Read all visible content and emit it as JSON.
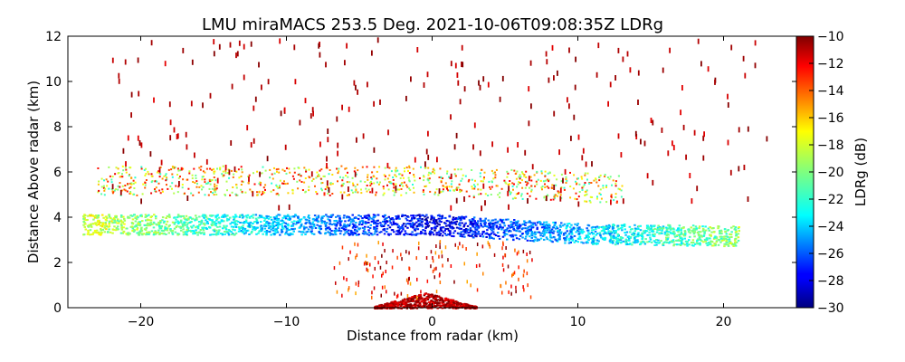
{
  "chart_data": {
    "type": "heatmap",
    "title": "LMU miraMACS 253.5 Deg. 2021-10-06T09:08:35Z  LDRg",
    "xlabel": "Distance from radar (km)",
    "ylabel": "Distance Above radar  (km)",
    "xlim": [
      -25,
      25
    ],
    "ylim": [
      0,
      12
    ],
    "x_ticks": [
      -20,
      -10,
      0,
      10,
      20
    ],
    "y_ticks": [
      0,
      2,
      4,
      6,
      8,
      10,
      12
    ],
    "x_tick_labels": [
      "−20",
      "−10",
      "0",
      "10",
      "20"
    ],
    "y_tick_labels": [
      "0",
      "2",
      "4",
      "6",
      "8",
      "10",
      "12"
    ],
    "grid": false,
    "colormap": "jet",
    "colorbar": {
      "label": "LDRg (dB)",
      "range": [
        -30,
        -10
      ],
      "ticks": [
        -30,
        -28,
        -26,
        -24,
        -22,
        -20,
        -18,
        -16,
        -14,
        -12,
        -10
      ],
      "tick_labels": [
        "−30",
        "−28",
        "−26",
        "−24",
        "−22",
        "−20",
        "−18",
        "−16",
        "−14",
        "−12",
        "−10"
      ]
    },
    "features": [
      {
        "name": "main cloud layer",
        "x_range": [
          -24,
          21
        ],
        "height_km": [
          3.2,
          4.2
        ],
        "ldr_db": -25
      },
      {
        "name": "upper layer",
        "x_range": [
          -23,
          13
        ],
        "height_km": [
          5.0,
          6.3
        ],
        "ldr_db": -18
      },
      {
        "name": "near-ground clutter",
        "x_range": [
          -4,
          3
        ],
        "height_km": [
          0.0,
          0.7
        ],
        "ldr_db": -11
      },
      {
        "name": "sparse high returns",
        "x_range": [
          -23,
          23
        ],
        "height_km": [
          6.5,
          12.0
        ],
        "ldr_db": -10
      }
    ]
  }
}
